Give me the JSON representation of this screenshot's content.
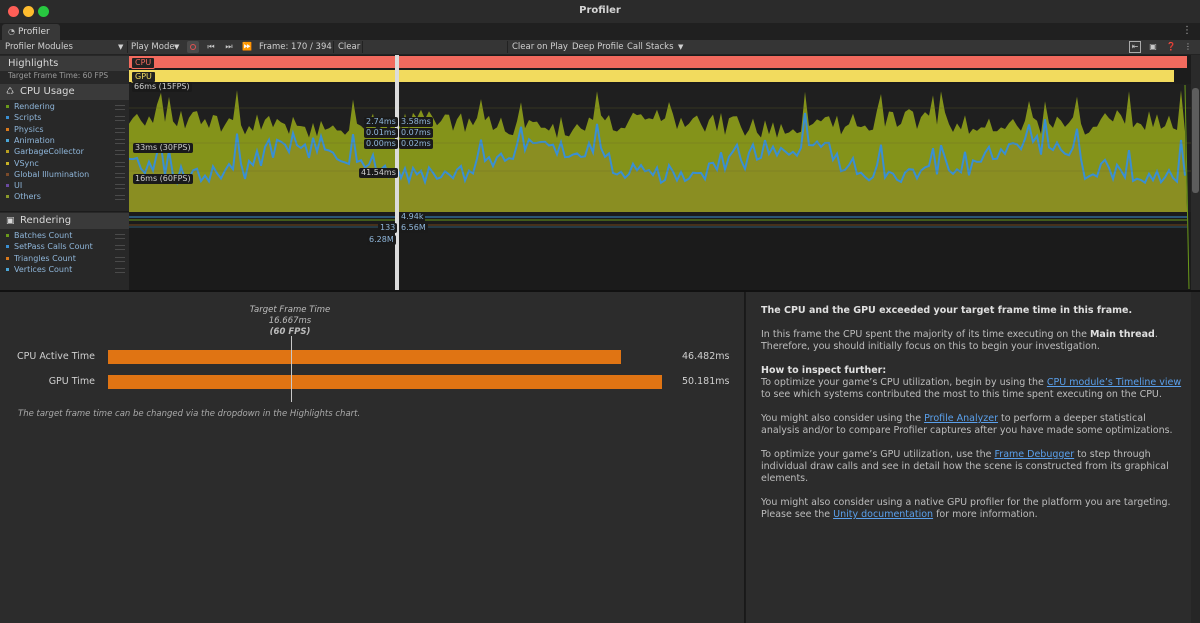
{
  "window": {
    "title": "Profiler"
  },
  "tab": {
    "label": "Profiler"
  },
  "toolbar": {
    "modules_label": "Profiler Modules",
    "play_mode_label": "Play Mode",
    "frame_label": "Frame: 170 / 394",
    "clear_label": "Clear",
    "clear_on_play_label": "Clear on Play",
    "deep_profile_label": "Deep Profile",
    "call_stacks_label": "Call Stacks"
  },
  "highlights": {
    "title": "Highlights",
    "subtitle": "Target Frame Time: 60 FPS",
    "cpu_tag": "CPU",
    "gpu_tag": "GPU",
    "colors": {
      "cpu": "#f26a5e",
      "gpu": "#f2db5e"
    }
  },
  "cpu_module": {
    "title": "CPU Usage",
    "icon": "cpu-icon",
    "legend": [
      {
        "label": "Rendering",
        "color": "#6a9a1a"
      },
      {
        "label": "Scripts",
        "color": "#3a8fd2"
      },
      {
        "label": "Physics",
        "color": "#d97a1c"
      },
      {
        "label": "Animation",
        "color": "#4aa6d6"
      },
      {
        "label": "GarbageCollector",
        "color": "#b9a020"
      },
      {
        "label": "VSync",
        "color": "#c7b226"
      },
      {
        "label": "Global Illumination",
        "color": "#7a4a2a"
      },
      {
        "label": "UI",
        "color": "#6a4aa0"
      },
      {
        "label": "Others",
        "color": "#8a9a2a"
      }
    ],
    "chart_labels": {
      "l66": "66ms (15FPS)",
      "l33": "33ms (30FPS)",
      "l16": "16ms (60FPS)",
      "v1": "2.74ms",
      "v2": "0.01ms",
      "v3": "0.00ms",
      "v4": "3.58ms",
      "v5": "0.07ms",
      "v6": "0.02ms",
      "v7": "41.54ms"
    }
  },
  "rendering_module": {
    "title": "Rendering",
    "icon": "rendering-icon",
    "legend": [
      {
        "label": "Batches Count",
        "color": "#6a9a1a"
      },
      {
        "label": "SetPass Calls Count",
        "color": "#3a8fd2"
      },
      {
        "label": "Triangles Count",
        "color": "#d97a1c"
      },
      {
        "label": "Vertices Count",
        "color": "#4aa6d6"
      }
    ],
    "chart_labels": {
      "r1": "4.94k",
      "r2": "133",
      "r3": "6.56M",
      "r4": "6.28M"
    }
  },
  "frame_summary": {
    "target_title": "Target Frame Time",
    "target_ms": "16.667ms",
    "target_fps": "(60 FPS)",
    "bars": [
      {
        "label": "CPU Active Time",
        "value": "46.482ms",
        "ms": 46.482
      },
      {
        "label": "GPU Time",
        "value": "50.181ms",
        "ms": 50.181
      }
    ],
    "note": "The target frame time can be changed via the dropdown in the Highlights chart."
  },
  "advice": {
    "heading": "The CPU and the GPU exceeded your target frame time in this frame.",
    "p1_a": "In this frame the CPU spent the majority of its time executing on the ",
    "p1_b": "Main thread",
    "p1_c": ". Therefore, you should initially focus on this to begin your investigation.",
    "h2": "How to inspect further:",
    "p2_a": "To optimize your game’s CPU utilization, begin by using the ",
    "p2_link": "CPU module’s Timeline view",
    "p2_b": " to see which systems contributed the most to this time spent executing on the CPU.",
    "p3_a": "You might also consider using the ",
    "p3_link": "Profile Analyzer",
    "p3_b": " to perform a deeper statistical analysis and/or to compare Profiler captures after you have made some optimizations.",
    "p4_a": "To optimize your game’s GPU utilization, use the ",
    "p4_link": "Frame Debugger",
    "p4_b": " to step through individual draw calls and see in detail how the scene is constructed from its graphical elements.",
    "p5_a": "You might also consider using a native GPU profiler for the platform you are targeting. Please see the ",
    "p5_link": "Unity documentation",
    "p5_b": " for more information."
  }
}
